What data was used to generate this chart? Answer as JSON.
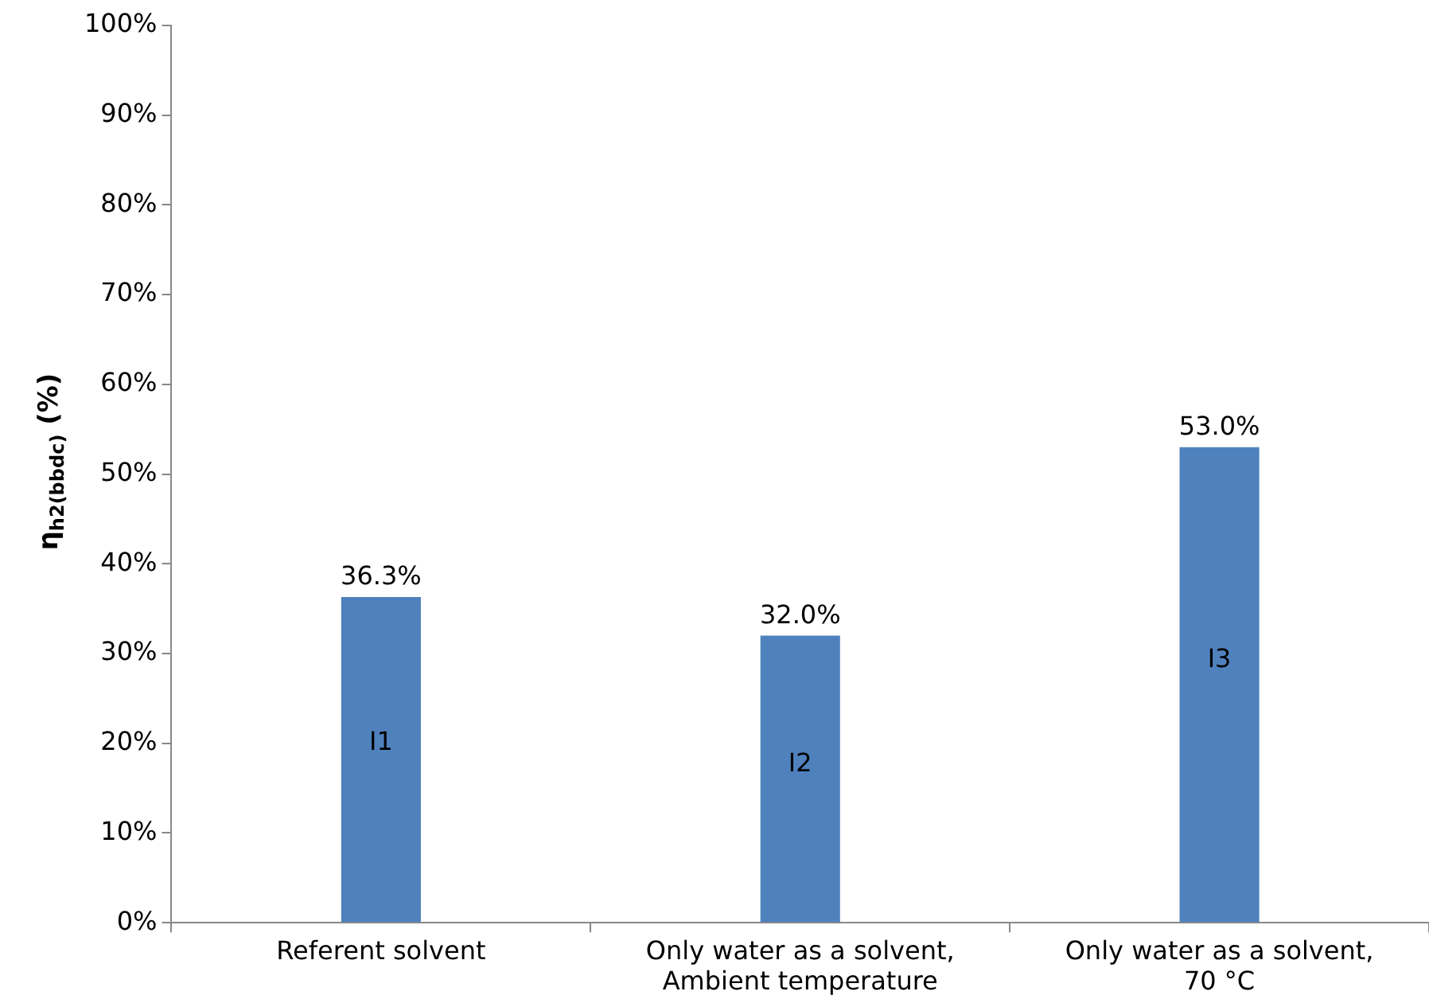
{
  "chart_data": {
    "type": "bar",
    "ylabel": "η$_{h2(bbdc)}$ (%)",
    "categories": [
      "Referent solvent",
      "Only water as a solvent,\nAmbient temperature",
      "Only water as a solvent,\n70 °C"
    ],
    "values": [
      36.3,
      32.0,
      53.0
    ],
    "color": "#4f81bd",
    "value_labels": [
      "36.3%",
      "32.0%",
      "53.0%"
    ],
    "annotations": [
      "I1",
      "I2",
      "I3"
    ],
    "ylim": [
      0,
      100
    ],
    "yticks": [
      {
        "value": 0,
        "label": "0%"
      },
      {
        "value": 10,
        "label": "10%"
      },
      {
        "value": 20,
        "label": "20%"
      },
      {
        "value": 30,
        "label": "30%"
      },
      {
        "value": 40,
        "label": "40%"
      },
      {
        "value": 50,
        "label": "50%"
      },
      {
        "value": 60,
        "label": "60%"
      },
      {
        "value": 70,
        "label": "70%"
      },
      {
        "value": 80,
        "label": "80%"
      },
      {
        "value": 90,
        "label": "90%"
      },
      {
        "value": 100,
        "label": "100%"
      }
    ],
    "grid": false,
    "legend": false
  }
}
